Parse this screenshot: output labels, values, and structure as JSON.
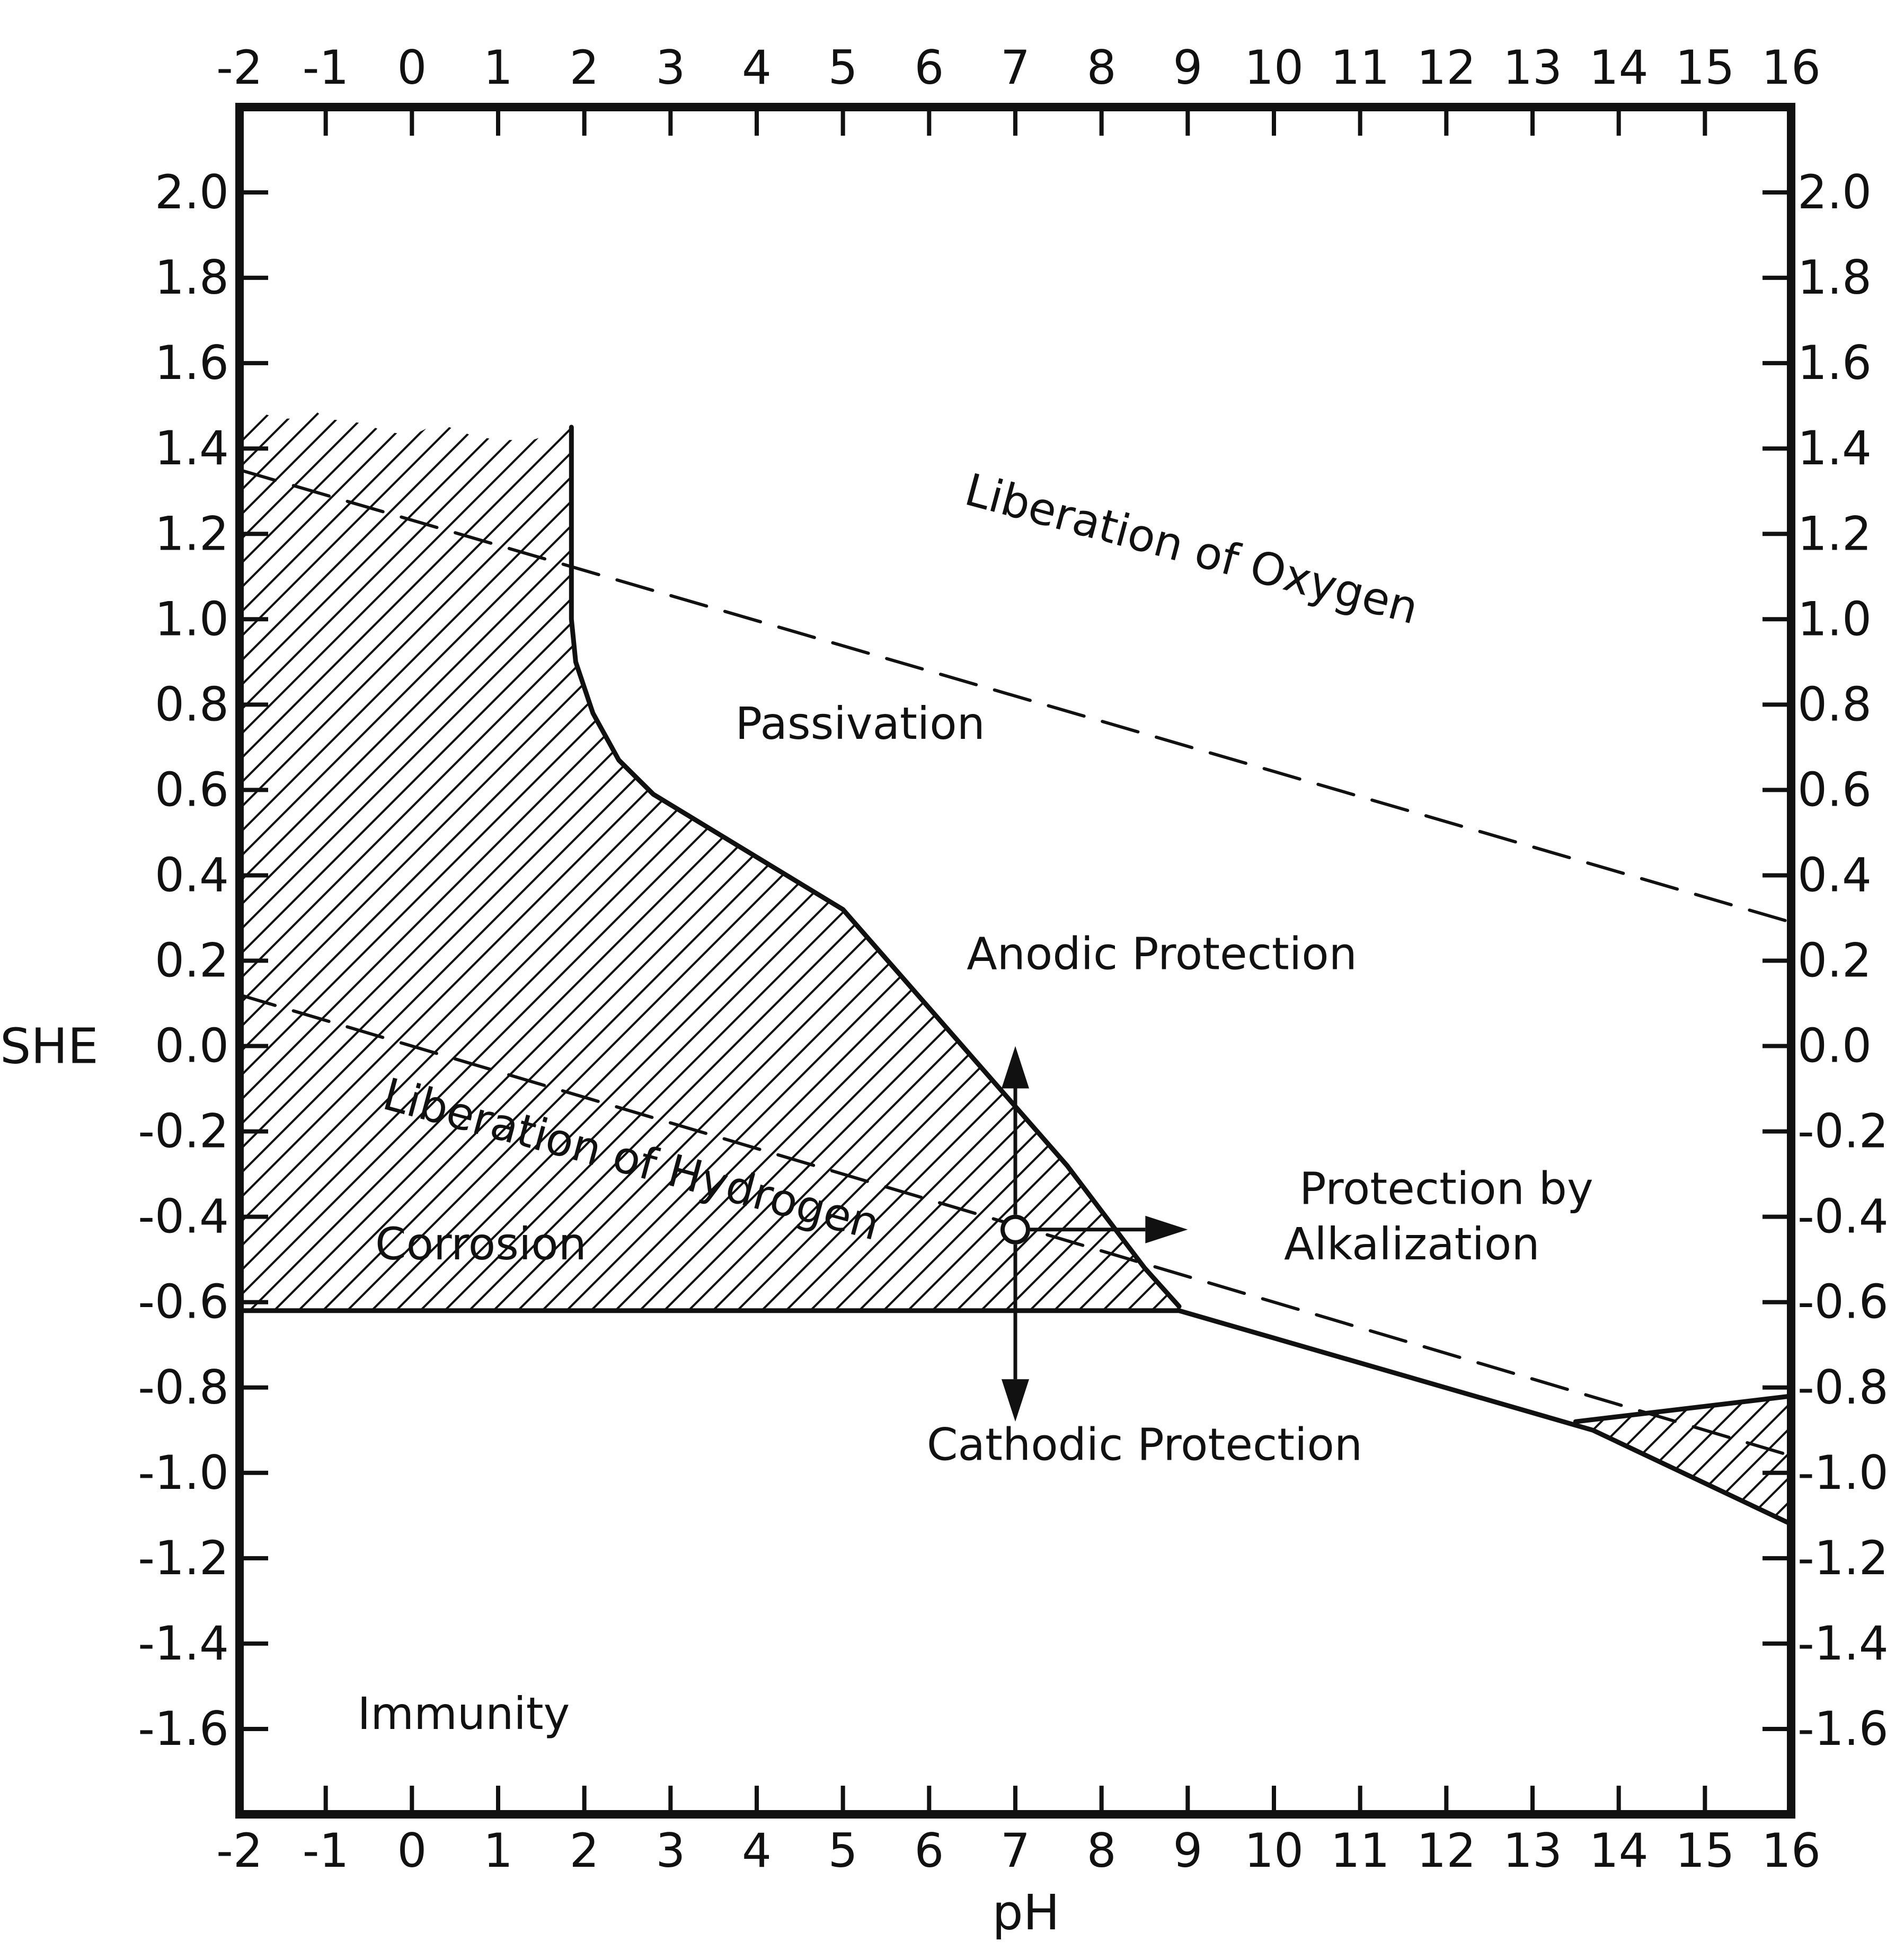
{
  "chart_data": {
    "type": "line",
    "xlabel": "pH",
    "ylabel": "SHE",
    "xlim": [
      -2,
      16
    ],
    "ylim": [
      -1.8,
      2.2
    ],
    "x_ticks": [
      -2,
      -1,
      0,
      1,
      2,
      3,
      4,
      5,
      6,
      7,
      8,
      9,
      10,
      11,
      12,
      13,
      14,
      15,
      16
    ],
    "x_tick_labels": [
      "-2",
      "-1",
      "0",
      "1",
      "2",
      "3",
      "4",
      "5",
      "6",
      "7",
      "8",
      "9",
      "10",
      "11",
      "12",
      "13",
      "14",
      "15",
      "16"
    ],
    "y_ticks": [
      2.0,
      1.8,
      1.6,
      1.4,
      1.2,
      1.0,
      0.8,
      0.6,
      0.4,
      0.2,
      0.0,
      -0.2,
      -0.4,
      -0.6,
      -0.8,
      -1.0,
      -1.2,
      -1.4,
      -1.6
    ],
    "y_tick_labels": [
      "2.0",
      "1.8",
      "1.6",
      "1.4",
      "1.2",
      "1.0",
      "0.8",
      "0.6",
      "0.4",
      "0.2",
      "0.0",
      "-0.2",
      "-0.4",
      "-0.6",
      "-0.8",
      "-1.0",
      "-1.2",
      "-1.4",
      "-1.6"
    ],
    "lines": [
      {
        "id": "oxygen",
        "style": "dashed",
        "points": [
          [
            -2,
            1.35
          ],
          [
            16,
            0.29
          ]
        ]
      },
      {
        "id": "hydrogen",
        "style": "dashed",
        "points": [
          [
            -2,
            0.12
          ],
          [
            16,
            -0.96
          ]
        ]
      },
      {
        "id": "passivation-boundary",
        "style": "solid",
        "points": [
          [
            1.85,
            1.45
          ],
          [
            1.85,
            1.0
          ],
          [
            1.9,
            0.9
          ],
          [
            2.1,
            0.78
          ],
          [
            2.4,
            0.67
          ],
          [
            2.8,
            0.59
          ],
          [
            5.0,
            0.32
          ],
          [
            7.6,
            -0.28
          ],
          [
            8.5,
            -0.52
          ],
          [
            8.9,
            -0.61
          ]
        ]
      },
      {
        "id": "immunity-boundary",
        "style": "solid",
        "points": [
          [
            -2,
            -0.62
          ],
          [
            8.9,
            -0.62
          ],
          [
            13.7,
            -0.9
          ],
          [
            16,
            -1.12
          ]
        ]
      },
      {
        "id": "hface-boundary",
        "style": "solid",
        "points": [
          [
            13.5,
            -0.88
          ],
          [
            16,
            -0.82
          ]
        ]
      }
    ],
    "regions": [
      {
        "id": "corrosion-left",
        "pattern": "hatched",
        "polygon": [
          [
            -2,
            1.46
          ],
          [
            -1.7,
            1.48
          ],
          [
            -1.5,
            1.47
          ],
          [
            -1.3,
            1.47
          ],
          [
            -1.2,
            1.5
          ],
          [
            -1.0,
            1.47
          ],
          [
            -0.6,
            1.46
          ],
          [
            -0.3,
            1.44
          ],
          [
            0.0,
            1.43
          ],
          [
            0.3,
            1.46
          ],
          [
            0.7,
            1.43
          ],
          [
            1.0,
            1.42
          ],
          [
            1.4,
            1.42
          ],
          [
            1.85,
            1.45
          ],
          [
            1.85,
            1.0
          ],
          [
            1.9,
            0.9
          ],
          [
            2.1,
            0.78
          ],
          [
            2.4,
            0.67
          ],
          [
            2.8,
            0.59
          ],
          [
            5.0,
            0.32
          ],
          [
            7.6,
            -0.28
          ],
          [
            8.5,
            -0.52
          ],
          [
            8.9,
            -0.61
          ],
          [
            8.9,
            -0.62
          ],
          [
            -2,
            -0.62
          ]
        ]
      },
      {
        "id": "corrosion-right",
        "pattern": "hatched",
        "polygon": [
          [
            13.5,
            -0.88
          ],
          [
            16,
            -0.82
          ],
          [
            16,
            -1.12
          ],
          [
            13.7,
            -0.9
          ]
        ]
      }
    ],
    "annotations": [
      {
        "id": "liberation-oxygen",
        "text": "Liberation of Oxygen",
        "x": 9.0,
        "y": 1.13,
        "angle": 15
      },
      {
        "id": "liberation-hydrogen",
        "text": "Liberation of Hydrogen",
        "x": 2.5,
        "y": -0.3,
        "angle": 15
      },
      {
        "id": "passivation",
        "text": "Passivation",
        "x": 5.2,
        "y": 0.72,
        "angle": 0
      },
      {
        "id": "anodic-protection",
        "text": "Anodic Protection",
        "x": 8.7,
        "y": 0.18,
        "angle": 0
      },
      {
        "id": "protection-by",
        "text": "Protection by",
        "x": 12.0,
        "y": -0.37,
        "angle": 0
      },
      {
        "id": "alkalization",
        "text": "Alkalization",
        "x": 11.6,
        "y": -0.5,
        "angle": 0
      },
      {
        "id": "corrosion",
        "text": "Corrosion",
        "x": 0.8,
        "y": -0.5,
        "angle": 0
      },
      {
        "id": "cathodic-protection",
        "text": "Cathodic Protection",
        "x": 8.5,
        "y": -0.97,
        "angle": 0
      },
      {
        "id": "immunity",
        "text": "Immunity",
        "x": 0.6,
        "y": -1.6,
        "angle": 0
      }
    ],
    "arrow_origin": {
      "x": 7.0,
      "y": -0.43
    },
    "arrows": [
      {
        "id": "arrow-up",
        "to": [
          7.0,
          0.0
        ]
      },
      {
        "id": "arrow-down",
        "to": [
          7.0,
          -0.88
        ]
      },
      {
        "id": "arrow-right",
        "to": [
          9.0,
          -0.43
        ]
      }
    ]
  }
}
